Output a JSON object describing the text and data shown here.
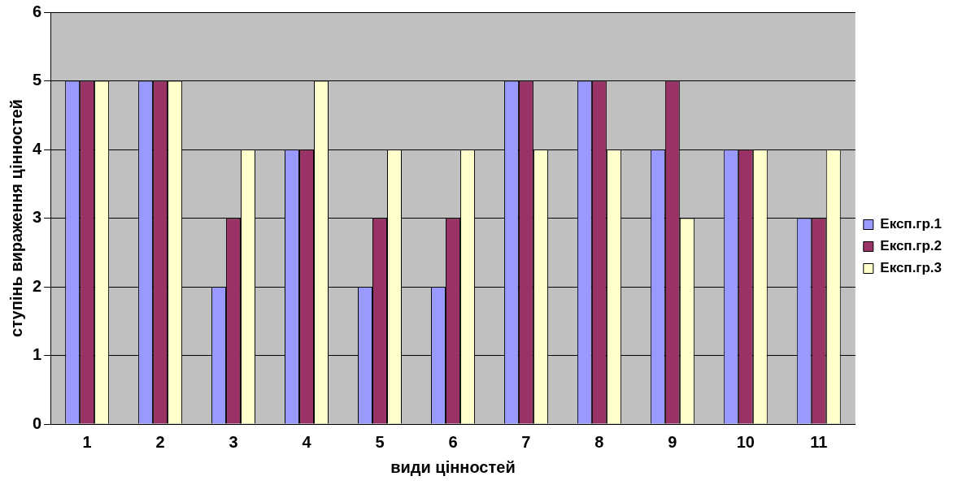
{
  "chart_data": {
    "type": "bar",
    "xlabel": "види цінностей",
    "ylabel": "ступінь вираження цінностей",
    "categories": [
      "1",
      "2",
      "3",
      "4",
      "5",
      "6",
      "7",
      "8",
      "9",
      "10",
      "11"
    ],
    "series": [
      {
        "name": "Експ.гр.1",
        "color": "#9999ff",
        "values": [
          5,
          5,
          2,
          4,
          2,
          2,
          5,
          5,
          4,
          4,
          3
        ]
      },
      {
        "name": "Експ.гр.2",
        "color": "#993366",
        "values": [
          5,
          5,
          3,
          4,
          3,
          3,
          5,
          5,
          5,
          4,
          3
        ]
      },
      {
        "name": "Експ.гр.3",
        "color": "#ffffcc",
        "values": [
          5,
          5,
          4,
          5,
          4,
          4,
          4,
          4,
          3,
          4,
          4
        ]
      }
    ],
    "ylim": [
      0,
      6
    ],
    "yticks": [
      0,
      1,
      2,
      3,
      4,
      5,
      6
    ],
    "grid": "y",
    "legend": "right"
  }
}
